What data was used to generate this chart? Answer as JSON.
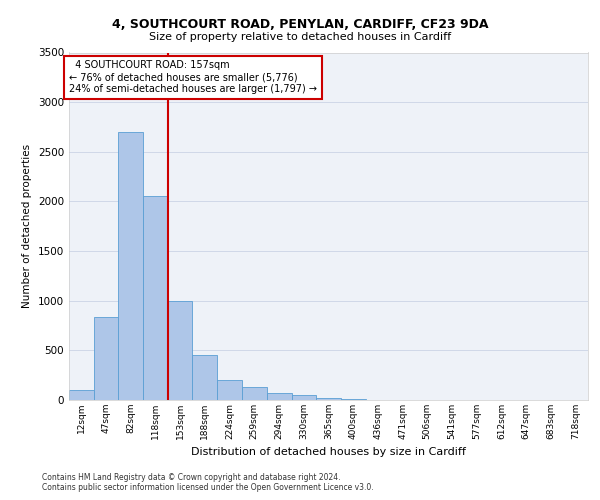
{
  "title_line1": "4, SOUTHCOURT ROAD, PENYLAN, CARDIFF, CF23 9DA",
  "title_line2": "Size of property relative to detached houses in Cardiff",
  "xlabel": "Distribution of detached houses by size in Cardiff",
  "ylabel": "Number of detached properties",
  "footnote": "Contains HM Land Registry data © Crown copyright and database right 2024.\nContains public sector information licensed under the Open Government Licence v3.0.",
  "bin_labels": [
    "12sqm",
    "47sqm",
    "82sqm",
    "118sqm",
    "153sqm",
    "188sqm",
    "224sqm",
    "259sqm",
    "294sqm",
    "330sqm",
    "365sqm",
    "400sqm",
    "436sqm",
    "471sqm",
    "506sqm",
    "541sqm",
    "577sqm",
    "612sqm",
    "647sqm",
    "683sqm",
    "718sqm"
  ],
  "bin_edges": [
    12,
    47,
    82,
    118,
    153,
    188,
    224,
    259,
    294,
    330,
    365,
    400,
    436,
    471,
    506,
    541,
    577,
    612,
    647,
    683,
    718,
    753
  ],
  "bar_heights": [
    100,
    840,
    2700,
    2050,
    1000,
    450,
    200,
    130,
    70,
    50,
    20,
    10,
    5,
    3,
    2,
    1,
    1,
    0,
    0,
    0,
    0
  ],
  "bar_color": "#aec6e8",
  "bar_edge_color": "#5a9fd4",
  "grid_color": "#d0d8e8",
  "background_color": "#eef2f8",
  "red_line_x": 153,
  "annotation_box_text": "  4 SOUTHCOURT ROAD: 157sqm\n← 76% of detached houses are smaller (5,776)\n24% of semi-detached houses are larger (1,797) →",
  "annotation_box_color": "#cc0000",
  "ylim": [
    0,
    3500
  ],
  "yticks": [
    0,
    500,
    1000,
    1500,
    2000,
    2500,
    3000,
    3500
  ]
}
